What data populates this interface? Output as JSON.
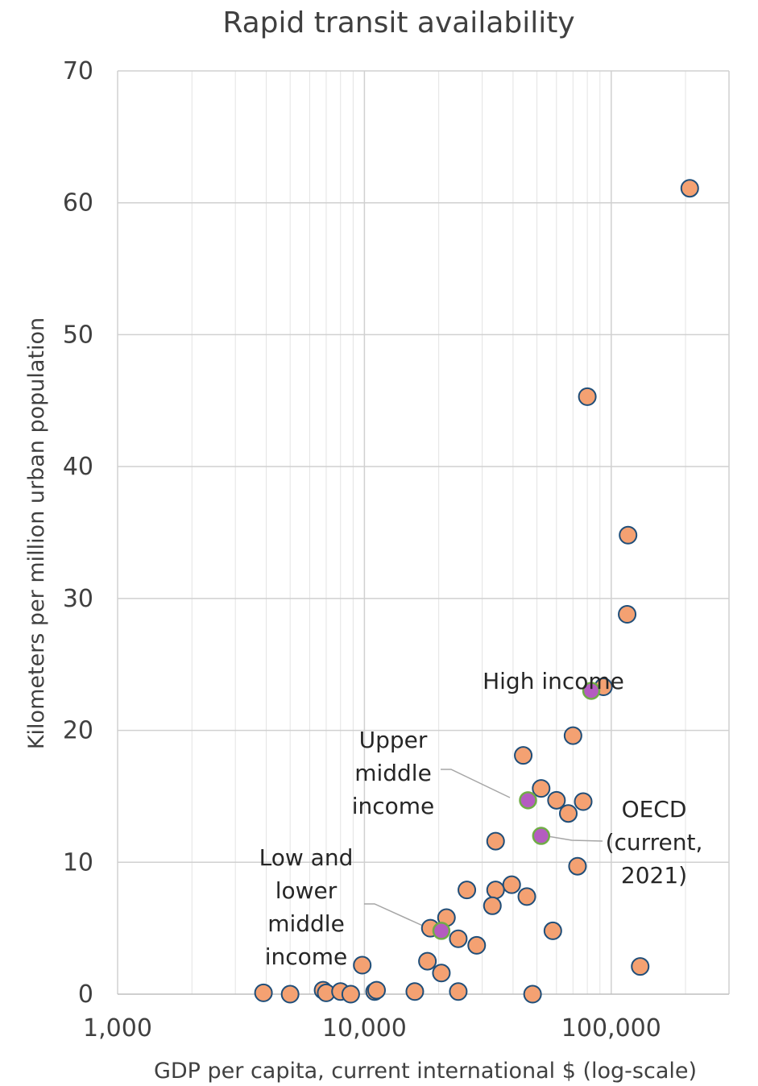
{
  "chart_data": {
    "type": "scatter",
    "title": "Rapid transit availability",
    "xlabel": "GDP per capita, current international $ (log-scale)",
    "ylabel": "Kilometers per million urban population",
    "x_scale": "log",
    "xlim": [
      1000,
      300000
    ],
    "ylim": [
      0,
      70
    ],
    "x_ticks": [
      1000,
      10000,
      100000
    ],
    "x_tick_labels": [
      "1,000",
      "10,000",
      "100,000"
    ],
    "y_ticks": [
      0,
      10,
      20,
      30,
      40,
      50,
      60,
      70
    ],
    "y_tick_labels": [
      "0",
      "10",
      "20",
      "30",
      "40",
      "50",
      "60",
      "70"
    ],
    "grid": "on (major and minor)",
    "colors": {
      "country_fill": "#f4a172",
      "country_edge": "#1f4e79",
      "group_fill": "#b45cc0",
      "group_edge": "#70ad47"
    },
    "series": [
      {
        "points": [
          {
            "x": 208000,
            "y": 61.1
          },
          {
            "x": 80000,
            "y": 45.3
          },
          {
            "x": 117000,
            "y": 34.8
          },
          {
            "x": 116000,
            "y": 28.8
          },
          {
            "x": 93000,
            "y": 23.3
          },
          {
            "x": 70000,
            "y": 19.6
          },
          {
            "x": 44000,
            "y": 18.1
          },
          {
            "x": 52000,
            "y": 15.6
          },
          {
            "x": 60000,
            "y": 14.7
          },
          {
            "x": 77000,
            "y": 14.6
          },
          {
            "x": 67000,
            "y": 13.7
          },
          {
            "x": 34000,
            "y": 11.6
          },
          {
            "x": 73000,
            "y": 9.7
          },
          {
            "x": 39500,
            "y": 8.3
          },
          {
            "x": 26000,
            "y": 7.9
          },
          {
            "x": 34000,
            "y": 7.9
          },
          {
            "x": 45500,
            "y": 7.4
          },
          {
            "x": 33000,
            "y": 6.7
          },
          {
            "x": 21500,
            "y": 5.8
          },
          {
            "x": 18500,
            "y": 5.0
          },
          {
            "x": 58000,
            "y": 4.8
          },
          {
            "x": 24000,
            "y": 4.2
          },
          {
            "x": 28500,
            "y": 3.7
          },
          {
            "x": 18000,
            "y": 2.5
          },
          {
            "x": 9800,
            "y": 2.2
          },
          {
            "x": 131000,
            "y": 2.1
          },
          {
            "x": 20500,
            "y": 1.6
          },
          {
            "x": 3900,
            "y": 0.1
          },
          {
            "x": 5000,
            "y": 0.0
          },
          {
            "x": 6800,
            "y": 0.3
          },
          {
            "x": 7000,
            "y": 0.1
          },
          {
            "x": 8000,
            "y": 0.2
          },
          {
            "x": 8800,
            "y": 0.0
          },
          {
            "x": 11000,
            "y": 0.2
          },
          {
            "x": 11200,
            "y": 0.3
          },
          {
            "x": 16000,
            "y": 0.2
          },
          {
            "x": 24000,
            "y": 0.2
          },
          {
            "x": 48000,
            "y": 0.0
          }
        ]
      },
      {
        "points": [
          {
            "x": 83000,
            "y": 23.0,
            "label": "High income"
          },
          {
            "x": 46000,
            "y": 14.7,
            "label": "Upper\nmiddle\nincome"
          },
          {
            "x": 52000,
            "y": 12.0,
            "label": "OECD\n(current,\n2021)"
          },
          {
            "x": 20500,
            "y": 4.8,
            "label": "Low and\nlower\nmiddle\nincome"
          }
        ]
      }
    ]
  }
}
